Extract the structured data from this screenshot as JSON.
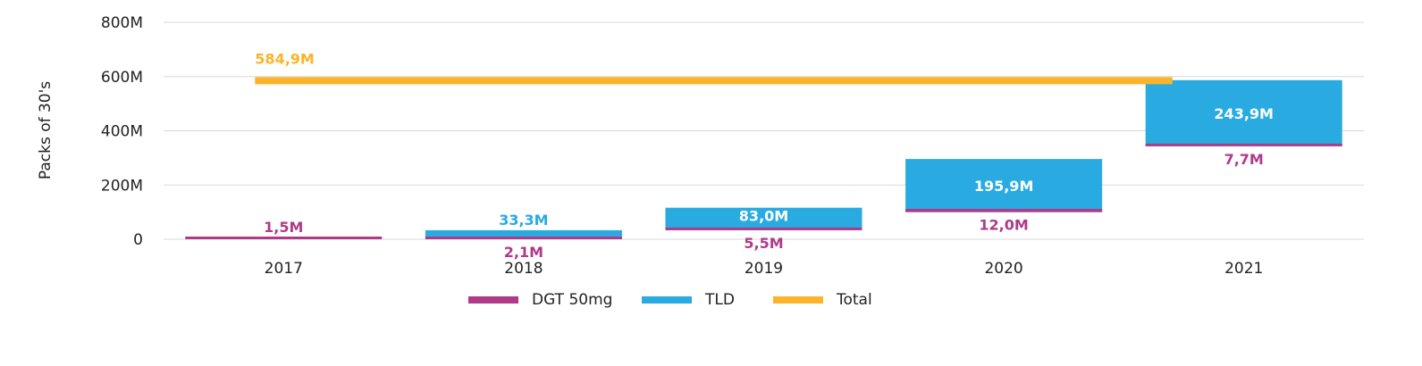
{
  "chart_data": {
    "type": "bar",
    "title": "",
    "xlabel": "",
    "ylabel": "Packs of 30's",
    "ylim": [
      0,
      800
    ],
    "yticks": [
      {
        "value": 0,
        "label": "0"
      },
      {
        "value": 200,
        "label": "200M"
      },
      {
        "value": 400,
        "label": "400M"
      },
      {
        "value": 600,
        "label": "600M"
      },
      {
        "value": 800,
        "label": "800M"
      }
    ],
    "grid": true,
    "legend_position": "bottom",
    "categories": [
      "2017",
      "2018",
      "2019",
      "2020",
      "2021"
    ],
    "series": [
      {
        "name": "DGT 50mg",
        "color": "#b03a8a",
        "values": [
          1.5,
          2.1,
          5.5,
          12.0,
          7.7
        ],
        "starts": [
          0,
          0,
          33.3,
          100,
          342.8
        ],
        "labels": [
          "1,5M",
          "2,1M",
          "5,5M",
          "12,0M",
          "7,7M"
        ]
      },
      {
        "name": "TLD",
        "color": "#29abe2",
        "values": [
          0,
          33.3,
          83.0,
          195.9,
          243.9
        ],
        "starts": [
          0,
          0,
          33.3,
          100,
          342.8
        ],
        "labels": [
          "",
          "33,3M",
          "83,0M",
          "195,9M",
          "243,9M"
        ]
      },
      {
        "name": "Total",
        "color": "#fbb42a",
        "value": 584.9,
        "label": "584,9M"
      }
    ]
  }
}
